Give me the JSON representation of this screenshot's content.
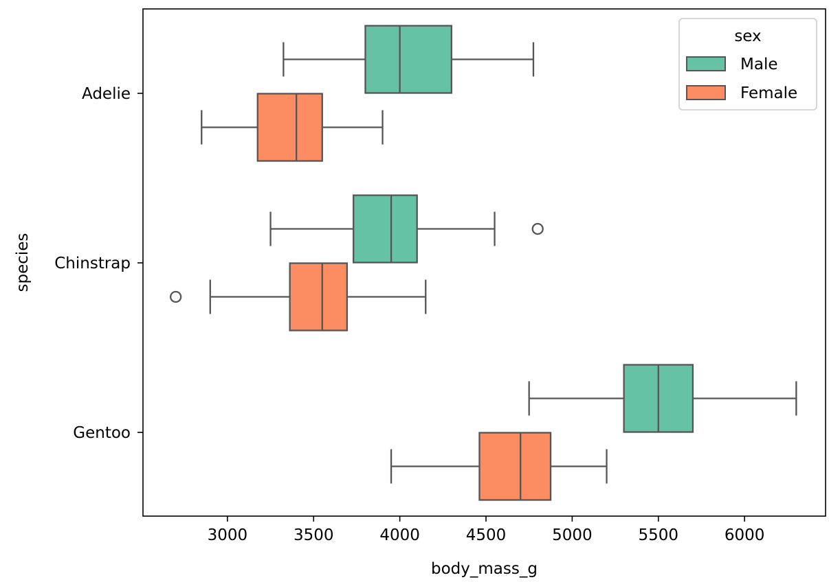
{
  "chart_data": {
    "type": "boxplot",
    "orientation": "horizontal",
    "xlabel": "body_mass_g",
    "ylabel": "species",
    "xlim": [
      2510,
      6470
    ],
    "xticks": [
      "3000",
      "3500",
      "4000",
      "4500",
      "5000",
      "5500",
      "6000"
    ],
    "categories": [
      "Adelie",
      "Chinstrap",
      "Gentoo"
    ],
    "grid": false,
    "legend": {
      "title": "sex",
      "position": "top-right",
      "entries": [
        "Male",
        "Female"
      ]
    },
    "series": [
      {
        "name": "Male",
        "color": "#66c2a5",
        "boxes": [
          {
            "category": "Adelie",
            "whisker_low": 3325,
            "q1": 3800,
            "median": 4000,
            "q3": 4300,
            "whisker_high": 4775,
            "outliers": []
          },
          {
            "category": "Chinstrap",
            "whisker_low": 3250,
            "q1": 3731,
            "median": 3950,
            "q3": 4100,
            "whisker_high": 4550,
            "outliers": [
              4800
            ]
          },
          {
            "category": "Gentoo",
            "whisker_low": 4750,
            "q1": 5300,
            "median": 5500,
            "q3": 5700,
            "whisker_high": 6300,
            "outliers": []
          }
        ]
      },
      {
        "name": "Female",
        "color": "#fc8d62",
        "boxes": [
          {
            "category": "Adelie",
            "whisker_low": 2850,
            "q1": 3175,
            "median": 3400,
            "q3": 3550,
            "whisker_high": 3900,
            "outliers": []
          },
          {
            "category": "Chinstrap",
            "whisker_low": 2900,
            "q1": 3362,
            "median": 3550,
            "q3": 3694,
            "whisker_high": 4150,
            "outliers": [
              2700
            ]
          },
          {
            "category": "Gentoo",
            "whisker_low": 3950,
            "q1": 4462,
            "median": 4700,
            "q3": 4875,
            "whisker_high": 5200,
            "outliers": []
          }
        ]
      }
    ]
  }
}
